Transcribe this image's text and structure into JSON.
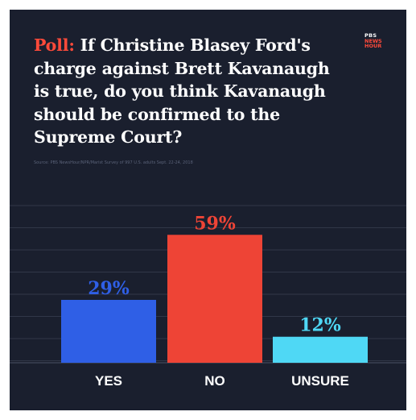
{
  "header": {
    "poll_label": "Poll:",
    "question": "If Christine Blasey Ford's charge against Brett Kavanaugh is true, do you think Kavanaugh should be confirmed to the Supreme Court?",
    "source": "Source: PBS NewsHour/NPR/Marist Survey of 997 U.S. adults Sept. 22-24, 2018"
  },
  "logo": {
    "line1": "PBS",
    "line2": "NEWS",
    "line3": "HOUR"
  },
  "chart_data": {
    "type": "bar",
    "title": "If Christine Blasey Ford's charge against Brett Kavanaugh is true, do you think Kavanaugh should be confirmed to the Supreme Court?",
    "categories": [
      "YES",
      "NO",
      "UNSURE"
    ],
    "values": [
      29,
      59,
      12
    ],
    "labels": [
      "29%",
      "59%",
      "12%"
    ],
    "colors": [
      "#2f5fe6",
      "#ee4436",
      "#4fd8f5"
    ],
    "ylim": [
      0,
      65
    ],
    "grid": true,
    "legend": "none"
  },
  "colors": {
    "background": "#1a1f2e",
    "poll_accent": "#ff4a3a",
    "text": "#ffffff",
    "grid": "#3a4052"
  }
}
